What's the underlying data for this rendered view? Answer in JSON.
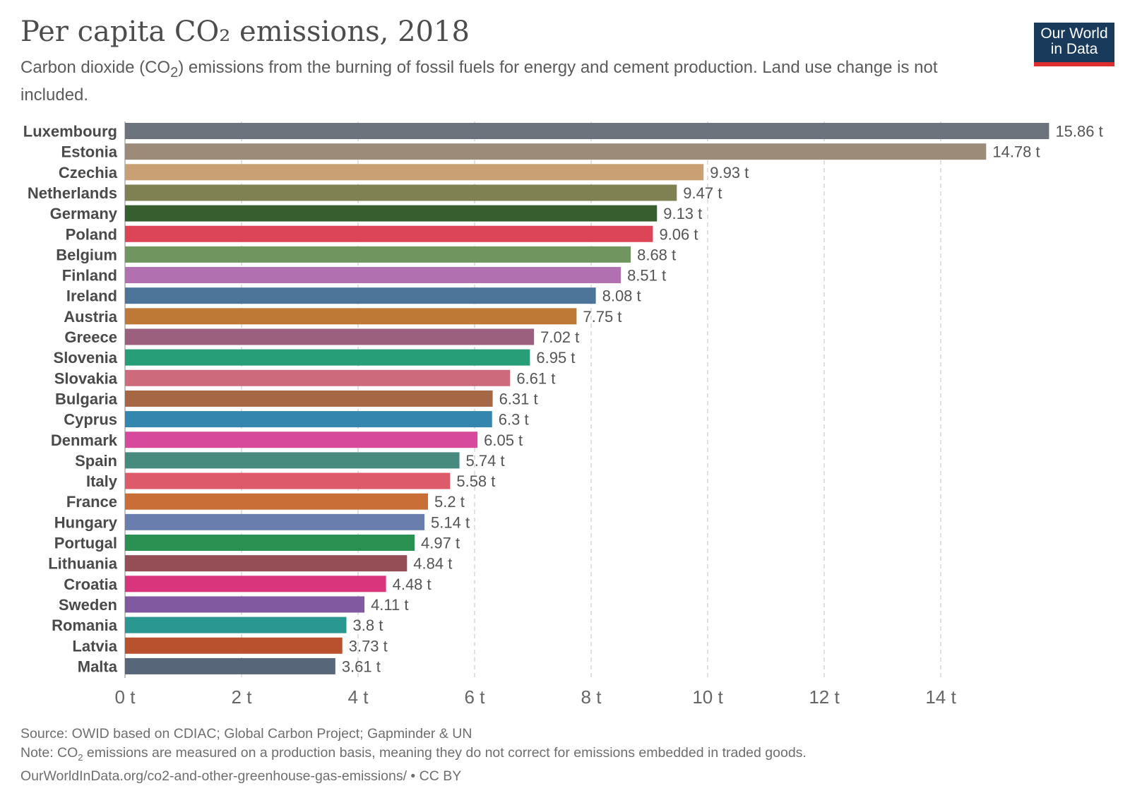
{
  "header": {
    "title": "Per capita CO₂ emissions, 2018",
    "subtitle_before": "Carbon dioxide (CO",
    "subtitle_sub": "2",
    "subtitle_after": ") emissions from the burning of fossil fuels for energy and cement production. Land use change is not included."
  },
  "logo": {
    "line1": "Our World",
    "line2": "in Data",
    "bg_color": "#1a3a5c",
    "bar_color": "#dc2f2f"
  },
  "footer": {
    "source": "Source: OWID based on CDIAC; Global Carbon Project; Gapminder & UN",
    "note_before": "Note: CO",
    "note_sub": "2",
    "note_after": " emissions are measured on a production basis, meaning they do not correct for emissions embedded in traded goods.",
    "url": "OurWorldInData.org/co2-and-other-greenhouse-gas-emissions/ • CC BY"
  },
  "chart_data": {
    "type": "bar",
    "orientation": "horizontal",
    "title": "Per capita CO₂ emissions, 2018",
    "unit_suffix": " t",
    "xlim": [
      0,
      16
    ],
    "x_ticks": [
      0,
      2,
      4,
      6,
      8,
      10,
      12,
      14
    ],
    "x_tick_labels": [
      "0 t",
      "2 t",
      "4 t",
      "6 t",
      "8 t",
      "10 t",
      "12 t",
      "14 t"
    ],
    "grid": true,
    "categories": [
      "Luxembourg",
      "Estonia",
      "Czechia",
      "Netherlands",
      "Germany",
      "Poland",
      "Belgium",
      "Finland",
      "Ireland",
      "Austria",
      "Greece",
      "Slovenia",
      "Slovakia",
      "Bulgaria",
      "Cyprus",
      "Denmark",
      "Spain",
      "Italy",
      "France",
      "Hungary",
      "Portugal",
      "Lithuania",
      "Croatia",
      "Sweden",
      "Romania",
      "Latvia",
      "Malta"
    ],
    "values": [
      15.86,
      14.78,
      9.93,
      9.47,
      9.13,
      9.06,
      8.68,
      8.51,
      8.08,
      7.75,
      7.02,
      6.95,
      6.61,
      6.31,
      6.3,
      6.05,
      5.74,
      5.58,
      5.2,
      5.14,
      4.97,
      4.84,
      4.48,
      4.11,
      3.8,
      3.73,
      3.61
    ],
    "value_labels": [
      "15.86 t",
      "14.78 t",
      "9.93 t",
      "9.47 t",
      "9.13 t",
      "9.06 t",
      "8.68 t",
      "8.51 t",
      "8.08 t",
      "7.75 t",
      "7.02 t",
      "6.95 t",
      "6.61 t",
      "6.31 t",
      "6.3 t",
      "6.05 t",
      "5.74 t",
      "5.58 t",
      "5.2 t",
      "5.14 t",
      "4.97 t",
      "4.84 t",
      "4.48 t",
      "4.11 t",
      "3.8 t",
      "3.73 t",
      "3.61 t"
    ],
    "colors": [
      "#6d737d",
      "#9c8b78",
      "#c8a073",
      "#7f8152",
      "#375e2e",
      "#dc4457",
      "#71955f",
      "#b170b0",
      "#4d7599",
      "#bf7937",
      "#9a607e",
      "#279d78",
      "#cd6a7b",
      "#a66745",
      "#3486ae",
      "#d7499b",
      "#478b7e",
      "#dd5a6b",
      "#ca6e37",
      "#6a7eae",
      "#2a9152",
      "#954e55",
      "#d8357c",
      "#8159a0",
      "#2a9890",
      "#b9512e",
      "#58667a"
    ]
  }
}
